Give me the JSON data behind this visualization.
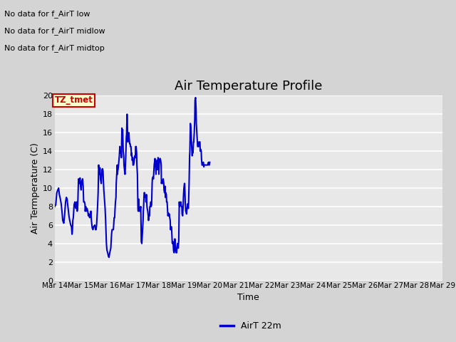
{
  "title": "Air Temperature Profile",
  "xlabel": "Time",
  "ylabel": "Air Termperature (C)",
  "ylim": [
    0,
    20
  ],
  "line_color": "#0000cc",
  "line_width": 1.5,
  "legend_label": "AirT 22m",
  "annotations_text": [
    "No data for f_AirT low",
    "No data for f_AirT midlow",
    "No data for f_AirT midtop"
  ],
  "annotation_box_text": "TZ_tmet",
  "annotation_box_color": "#cc0000",
  "annotation_box_bg": "#ffffcc",
  "ytick_labels": [
    0,
    2,
    4,
    6,
    8,
    10,
    12,
    14,
    16,
    18,
    20
  ],
  "data_points": [
    [
      0.0,
      8.0
    ],
    [
      0.04,
      8.2
    ],
    [
      0.08,
      9.5
    ],
    [
      0.12,
      9.8
    ],
    [
      0.15,
      10.0
    ],
    [
      0.18,
      9.3
    ],
    [
      0.22,
      8.8
    ],
    [
      0.25,
      8.3
    ],
    [
      0.28,
      7.5
    ],
    [
      0.31,
      6.5
    ],
    [
      0.35,
      6.2
    ],
    [
      0.38,
      7.0
    ],
    [
      0.42,
      8.5
    ],
    [
      0.45,
      9.0
    ],
    [
      0.48,
      8.8
    ],
    [
      0.5,
      8.3
    ],
    [
      0.52,
      7.8
    ],
    [
      0.55,
      7.0
    ],
    [
      0.58,
      6.5
    ],
    [
      0.62,
      6.0
    ],
    [
      0.65,
      5.8
    ],
    [
      0.67,
      5.0
    ],
    [
      0.68,
      5.2
    ],
    [
      0.7,
      6.5
    ],
    [
      0.72,
      6.8
    ],
    [
      0.75,
      8.2
    ],
    [
      0.78,
      8.5
    ],
    [
      0.8,
      8.0
    ],
    [
      0.82,
      7.8
    ],
    [
      0.83,
      8.0
    ],
    [
      0.85,
      8.5
    ],
    [
      0.87,
      7.5
    ],
    [
      0.89,
      8.0
    ],
    [
      0.92,
      11.0
    ],
    [
      0.95,
      10.5
    ],
    [
      0.98,
      11.1
    ],
    [
      1.0,
      10.2
    ],
    [
      1.02,
      9.8
    ],
    [
      1.05,
      10.8
    ],
    [
      1.08,
      11.0
    ],
    [
      1.1,
      10.2
    ],
    [
      1.12,
      8.5
    ],
    [
      1.15,
      8.5
    ],
    [
      1.17,
      8.3
    ],
    [
      1.18,
      7.5
    ],
    [
      1.2,
      8.0
    ],
    [
      1.22,
      7.5
    ],
    [
      1.25,
      7.8
    ],
    [
      1.28,
      7.5
    ],
    [
      1.3,
      7.0
    ],
    [
      1.32,
      7.2
    ],
    [
      1.35,
      6.8
    ],
    [
      1.38,
      7.0
    ],
    [
      1.4,
      7.5
    ],
    [
      1.42,
      6.5
    ],
    [
      1.44,
      6.0
    ],
    [
      1.45,
      5.7
    ],
    [
      1.48,
      5.5
    ],
    [
      1.5,
      5.8
    ],
    [
      1.55,
      6.0
    ],
    [
      1.58,
      5.5
    ],
    [
      1.6,
      5.5
    ],
    [
      1.62,
      6.0
    ],
    [
      1.65,
      7.5
    ],
    [
      1.68,
      9.5
    ],
    [
      1.7,
      12.5
    ],
    [
      1.72,
      12.0
    ],
    [
      1.74,
      11.5
    ],
    [
      1.75,
      12.2
    ],
    [
      1.77,
      11.0
    ],
    [
      1.8,
      10.5
    ],
    [
      1.83,
      12.0
    ],
    [
      1.85,
      12.1
    ],
    [
      1.87,
      11.8
    ],
    [
      1.88,
      11.0
    ],
    [
      1.9,
      9.8
    ],
    [
      1.92,
      9.0
    ],
    [
      1.93,
      8.5
    ],
    [
      1.95,
      7.8
    ],
    [
      1.97,
      6.5
    ],
    [
      2.0,
      4.0
    ],
    [
      2.02,
      3.3
    ],
    [
      2.05,
      3.0
    ],
    [
      2.08,
      2.6
    ],
    [
      2.1,
      2.5
    ],
    [
      2.13,
      3.0
    ],
    [
      2.17,
      3.5
    ],
    [
      2.2,
      5.0
    ],
    [
      2.22,
      5.5
    ],
    [
      2.25,
      5.5
    ],
    [
      2.27,
      5.5
    ],
    [
      2.3,
      6.8
    ],
    [
      2.32,
      6.8
    ],
    [
      2.33,
      7.5
    ],
    [
      2.35,
      8.5
    ],
    [
      2.37,
      9.0
    ],
    [
      2.38,
      10.5
    ],
    [
      2.4,
      11.5
    ],
    [
      2.42,
      12.5
    ],
    [
      2.43,
      11.5
    ],
    [
      2.44,
      12.0
    ],
    [
      2.45,
      12.0
    ],
    [
      2.47,
      12.5
    ],
    [
      2.5,
      13.5
    ],
    [
      2.52,
      14.5
    ],
    [
      2.53,
      13.8
    ],
    [
      2.55,
      13.8
    ],
    [
      2.57,
      14.0
    ],
    [
      2.58,
      13.3
    ],
    [
      2.6,
      16.5
    ],
    [
      2.62,
      16.0
    ],
    [
      2.63,
      16.3
    ],
    [
      2.65,
      14.0
    ],
    [
      2.67,
      13.5
    ],
    [
      2.68,
      12.5
    ],
    [
      2.7,
      12.0
    ],
    [
      2.72,
      11.5
    ],
    [
      2.73,
      12.0
    ],
    [
      2.75,
      13.5
    ],
    [
      2.77,
      15.5
    ],
    [
      2.78,
      15.8
    ],
    [
      2.8,
      18.0
    ],
    [
      2.82,
      16.0
    ],
    [
      2.83,
      15.0
    ],
    [
      2.85,
      15.5
    ],
    [
      2.87,
      16.0
    ],
    [
      2.88,
      15.5
    ],
    [
      2.9,
      14.8
    ],
    [
      2.92,
      14.8
    ],
    [
      2.93,
      14.5
    ],
    [
      2.95,
      14.5
    ],
    [
      2.97,
      13.5
    ],
    [
      2.98,
      13.8
    ],
    [
      3.0,
      13.0
    ],
    [
      3.02,
      13.3
    ],
    [
      3.03,
      12.5
    ],
    [
      3.05,
      12.5
    ],
    [
      3.07,
      12.8
    ],
    [
      3.1,
      13.5
    ],
    [
      3.12,
      13.3
    ],
    [
      3.13,
      14.5
    ],
    [
      3.15,
      14.5
    ],
    [
      3.17,
      13.8
    ],
    [
      3.18,
      12.5
    ],
    [
      3.2,
      11.5
    ],
    [
      3.22,
      7.8
    ],
    [
      3.23,
      7.5
    ],
    [
      3.25,
      8.8
    ],
    [
      3.27,
      7.5
    ],
    [
      3.28,
      7.8
    ],
    [
      3.3,
      7.5
    ],
    [
      3.33,
      8.0
    ],
    [
      3.35,
      4.2
    ],
    [
      3.37,
      4.0
    ],
    [
      3.38,
      4.5
    ],
    [
      3.4,
      5.5
    ],
    [
      3.42,
      6.5
    ],
    [
      3.43,
      7.5
    ],
    [
      3.44,
      8.0
    ],
    [
      3.46,
      9.5
    ],
    [
      3.48,
      9.5
    ],
    [
      3.5,
      9.0
    ],
    [
      3.52,
      9.0
    ],
    [
      3.53,
      8.5
    ],
    [
      3.55,
      9.3
    ],
    [
      3.57,
      8.0
    ],
    [
      3.58,
      7.8
    ],
    [
      3.6,
      7.5
    ],
    [
      3.62,
      7.0
    ],
    [
      3.63,
      6.5
    ],
    [
      3.65,
      7.0
    ],
    [
      3.67,
      7.0
    ],
    [
      3.68,
      8.0
    ],
    [
      3.7,
      8.0
    ],
    [
      3.72,
      8.5
    ],
    [
      3.73,
      8.0
    ],
    [
      3.75,
      8.2
    ],
    [
      3.77,
      10.5
    ],
    [
      3.78,
      11.0
    ],
    [
      3.8,
      11.2
    ],
    [
      3.82,
      11.0
    ],
    [
      3.83,
      11.5
    ],
    [
      3.85,
      12.5
    ],
    [
      3.87,
      13.0
    ],
    [
      3.88,
      13.2
    ],
    [
      3.9,
      12.5
    ],
    [
      3.92,
      11.5
    ],
    [
      3.93,
      12.5
    ],
    [
      3.95,
      13.0
    ],
    [
      3.97,
      12.0
    ],
    [
      3.98,
      12.5
    ],
    [
      4.0,
      13.3
    ],
    [
      4.02,
      12.8
    ],
    [
      4.03,
      11.5
    ],
    [
      4.05,
      13.0
    ],
    [
      4.07,
      13.2
    ],
    [
      4.08,
      13.2
    ],
    [
      4.1,
      13.0
    ],
    [
      4.12,
      12.5
    ],
    [
      4.13,
      10.5
    ],
    [
      4.15,
      10.8
    ],
    [
      4.17,
      10.5
    ],
    [
      4.18,
      10.8
    ],
    [
      4.2,
      11.0
    ],
    [
      4.22,
      10.5
    ],
    [
      4.23,
      9.8
    ],
    [
      4.25,
      9.5
    ],
    [
      4.27,
      10.2
    ],
    [
      4.28,
      9.0
    ],
    [
      4.3,
      9.5
    ],
    [
      4.32,
      9.3
    ],
    [
      4.33,
      8.5
    ],
    [
      4.35,
      8.5
    ],
    [
      4.37,
      7.5
    ],
    [
      4.38,
      7.0
    ],
    [
      4.4,
      7.3
    ],
    [
      4.42,
      7.0
    ],
    [
      4.43,
      7.2
    ],
    [
      4.45,
      6.8
    ],
    [
      4.47,
      6.5
    ],
    [
      4.48,
      5.5
    ],
    [
      4.5,
      5.8
    ],
    [
      4.52,
      5.8
    ],
    [
      4.53,
      5.2
    ],
    [
      4.55,
      4.0
    ],
    [
      4.57,
      4.0
    ],
    [
      4.58,
      4.2
    ],
    [
      4.6,
      3.2
    ],
    [
      4.62,
      3.0
    ],
    [
      4.63,
      3.2
    ],
    [
      4.65,
      4.5
    ],
    [
      4.68,
      3.3
    ],
    [
      4.7,
      3.0
    ],
    [
      4.72,
      3.0
    ],
    [
      4.73,
      3.5
    ],
    [
      4.75,
      4.0
    ],
    [
      4.77,
      3.8
    ],
    [
      4.78,
      3.5
    ],
    [
      4.8,
      4.3
    ],
    [
      4.82,
      8.5
    ],
    [
      4.83,
      8.0
    ],
    [
      4.85,
      8.2
    ],
    [
      4.87,
      8.2
    ],
    [
      4.88,
      8.5
    ],
    [
      4.9,
      8.0
    ],
    [
      4.92,
      8.0
    ],
    [
      4.93,
      7.2
    ],
    [
      4.95,
      7.0
    ],
    [
      4.97,
      8.0
    ],
    [
      4.98,
      9.0
    ],
    [
      5.0,
      10.0
    ],
    [
      5.02,
      10.5
    ],
    [
      5.03,
      10.5
    ],
    [
      5.05,
      8.5
    ],
    [
      5.07,
      7.5
    ],
    [
      5.08,
      7.5
    ],
    [
      5.1,
      7.2
    ],
    [
      5.12,
      7.8
    ],
    [
      5.13,
      8.0
    ],
    [
      5.15,
      8.3
    ],
    [
      5.17,
      7.8
    ],
    [
      5.18,
      8.3
    ],
    [
      5.2,
      10.5
    ],
    [
      5.22,
      13.5
    ],
    [
      5.23,
      14.0
    ],
    [
      5.25,
      17.0
    ],
    [
      5.27,
      16.5
    ],
    [
      5.28,
      15.8
    ],
    [
      5.3,
      14.5
    ],
    [
      5.32,
      13.5
    ],
    [
      5.33,
      14.0
    ],
    [
      5.35,
      13.8
    ],
    [
      5.37,
      15.0
    ],
    [
      5.38,
      15.0
    ],
    [
      5.4,
      16.0
    ],
    [
      5.42,
      17.5
    ],
    [
      5.43,
      19.5
    ],
    [
      5.45,
      19.8
    ],
    [
      5.47,
      18.5
    ],
    [
      5.48,
      17.0
    ],
    [
      5.5,
      16.0
    ],
    [
      5.52,
      15.0
    ],
    [
      5.53,
      14.5
    ],
    [
      5.55,
      14.5
    ],
    [
      5.57,
      14.5
    ],
    [
      5.58,
      15.0
    ],
    [
      5.6,
      15.0
    ],
    [
      5.62,
      15.0
    ],
    [
      5.63,
      14.0
    ],
    [
      5.65,
      14.2
    ],
    [
      5.67,
      14.0
    ],
    [
      5.68,
      13.2
    ],
    [
      5.7,
      12.5
    ],
    [
      5.72,
      12.5
    ],
    [
      5.73,
      12.5
    ],
    [
      5.75,
      12.8
    ],
    [
      5.77,
      12.3
    ],
    [
      5.78,
      12.5
    ],
    [
      5.8,
      12.5
    ],
    [
      5.82,
      12.5
    ],
    [
      5.83,
      12.5
    ],
    [
      5.85,
      12.5
    ],
    [
      5.87,
      12.5
    ],
    [
      5.88,
      12.5
    ],
    [
      5.9,
      12.5
    ],
    [
      5.92,
      12.5
    ],
    [
      5.95,
      12.8
    ],
    [
      5.97,
      12.5
    ],
    [
      5.98,
      12.5
    ],
    [
      6.0,
      12.8
    ]
  ]
}
